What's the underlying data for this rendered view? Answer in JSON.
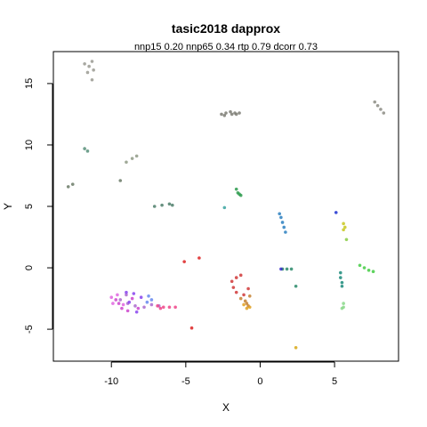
{
  "chart_data": {
    "type": "scatter",
    "title": "tasic2018 dapprox",
    "subtitle": "nnp15 0.20 nnp65 0.34 rtp 0.79 dcorr 0.73",
    "xlabel": "X",
    "ylabel": "Y",
    "xlim": [
      -13.9,
      9.3
    ],
    "ylim": [
      -7.6,
      17.6
    ],
    "xticks": [
      -10,
      -5,
      0,
      5
    ],
    "yticks": [
      -5,
      0,
      5,
      10,
      15
    ],
    "grid": false,
    "legend": "none",
    "clusters": [
      {
        "color": "#9a9a92",
        "points": [
          [
            -11.8,
            16.6
          ],
          [
            -11.5,
            16.4
          ],
          [
            -11.3,
            16.8
          ],
          [
            -11.2,
            16.1
          ],
          [
            -11.6,
            15.9
          ],
          [
            -11.3,
            15.3
          ]
        ]
      },
      {
        "color": "#7d7d74",
        "points": [
          [
            -2.6,
            12.5
          ],
          [
            -2.3,
            12.6
          ],
          [
            -2.0,
            12.7
          ],
          [
            -1.7,
            12.6
          ],
          [
            -1.4,
            12.6
          ],
          [
            -2.4,
            12.4
          ],
          [
            -1.9,
            12.5
          ],
          [
            -1.6,
            12.5
          ]
        ]
      },
      {
        "color": "#8c8c84",
        "points": [
          [
            7.7,
            13.5
          ],
          [
            7.9,
            13.2
          ],
          [
            8.1,
            12.9
          ],
          [
            8.3,
            12.6
          ]
        ]
      },
      {
        "color": "#58907a",
        "points": [
          [
            -11.8,
            9.7
          ],
          [
            -11.6,
            9.5
          ]
        ]
      },
      {
        "color": "#8f9a86",
        "points": [
          [
            -9.0,
            8.6
          ],
          [
            -8.6,
            8.9
          ],
          [
            -8.3,
            9.1
          ]
        ]
      },
      {
        "color": "#6a7a66",
        "points": [
          [
            -9.4,
            7.1
          ],
          [
            -12.9,
            6.6
          ],
          [
            -12.6,
            6.8
          ]
        ]
      },
      {
        "color": "#4c7e6a",
        "points": [
          [
            -7.1,
            5.0
          ],
          [
            -6.6,
            5.1
          ],
          [
            -6.1,
            5.2
          ],
          [
            -5.9,
            5.1
          ]
        ]
      },
      {
        "color": "#2d9b4d",
        "points": [
          [
            -1.6,
            6.4
          ],
          [
            -1.5,
            6.1
          ],
          [
            -1.3,
            5.9
          ],
          [
            -1.4,
            6.0
          ]
        ]
      },
      {
        "color": "#3aa3a0",
        "points": [
          [
            -2.4,
            4.9
          ]
        ]
      },
      {
        "color": "#2a7fbf",
        "points": [
          [
            1.3,
            4.4
          ],
          [
            1.4,
            4.1
          ],
          [
            1.5,
            3.7
          ],
          [
            1.6,
            3.3
          ],
          [
            1.7,
            2.9
          ]
        ]
      },
      {
        "color": "#1a2fd0",
        "points": [
          [
            5.1,
            4.5
          ]
        ]
      },
      {
        "color": "#c8c820",
        "points": [
          [
            5.6,
            3.6
          ],
          [
            5.7,
            3.3
          ],
          [
            5.6,
            3.1
          ]
        ]
      },
      {
        "color": "#88cc44",
        "points": [
          [
            5.8,
            2.3
          ]
        ]
      },
      {
        "color": "#2a8a6a",
        "points": [
          [
            1.5,
            -0.1
          ],
          [
            1.8,
            -0.1
          ],
          [
            2.1,
            -0.1
          ]
        ]
      },
      {
        "color": "#3a2acc",
        "points": [
          [
            1.4,
            -0.1
          ]
        ]
      },
      {
        "color": "#2a8a6a",
        "points": [
          [
            2.4,
            -1.5
          ]
        ]
      },
      {
        "color": "#1a8a7a",
        "points": [
          [
            5.4,
            -0.4
          ],
          [
            5.4,
            -0.8
          ],
          [
            5.5,
            -1.2
          ],
          [
            5.5,
            -1.5
          ]
        ]
      },
      {
        "color": "#44cc44",
        "points": [
          [
            6.7,
            0.2
          ],
          [
            7.0,
            0.0
          ],
          [
            7.3,
            -0.2
          ],
          [
            7.6,
            -0.3
          ]
        ]
      },
      {
        "color": "#8ad88a",
        "points": [
          [
            5.6,
            -2.9
          ],
          [
            5.6,
            -3.2
          ],
          [
            5.5,
            -3.3
          ]
        ]
      },
      {
        "color": "#dd2222",
        "points": [
          [
            -5.1,
            0.5
          ],
          [
            -4.1,
            0.8
          ],
          [
            -4.6,
            -4.9
          ]
        ]
      },
      {
        "color": "#d8a818",
        "points": [
          [
            2.4,
            -6.5
          ]
        ]
      },
      {
        "color": "#d03838",
        "points": [
          [
            -1.9,
            -1.1
          ],
          [
            -1.6,
            -0.8
          ],
          [
            -1.3,
            -0.6
          ],
          [
            -1.8,
            -1.6
          ],
          [
            -1.6,
            -2.0
          ],
          [
            -1.1,
            -2.2
          ],
          [
            -0.8,
            -1.7
          ]
        ]
      },
      {
        "color": "#c48030",
        "points": [
          [
            -1.3,
            -2.5
          ],
          [
            -1.0,
            -2.7
          ],
          [
            -0.9,
            -2.9
          ],
          [
            -0.8,
            -3.1
          ],
          [
            -0.7,
            -2.3
          ]
        ]
      },
      {
        "color": "#e0a020",
        "points": [
          [
            -1.1,
            -3.0
          ],
          [
            -0.9,
            -3.3
          ],
          [
            -0.7,
            -3.2
          ]
        ]
      },
      {
        "color": "#aa6acc",
        "points": [
          [
            -9.4,
            -2.6
          ],
          [
            -8.9,
            -2.9
          ],
          [
            -8.4,
            -3.1
          ],
          [
            -7.8,
            -3.2
          ],
          [
            -7.3,
            -3.0
          ],
          [
            -6.8,
            -3.1
          ],
          [
            -9.0,
            -2.2
          ]
        ]
      },
      {
        "color": "#cc44cc",
        "points": [
          [
            -9.7,
            -2.6
          ],
          [
            -9.3,
            -3.3
          ],
          [
            -8.6,
            -2.5
          ],
          [
            -8.9,
            -3.5
          ],
          [
            -8.2,
            -3.3
          ],
          [
            -9.5,
            -2.9
          ]
        ]
      },
      {
        "color": "#8844ee",
        "points": [
          [
            -9.0,
            -2.0
          ],
          [
            -8.5,
            -2.1
          ],
          [
            -8.8,
            -2.8
          ],
          [
            -8.0,
            -2.4
          ],
          [
            -8.3,
            -3.6
          ]
        ]
      },
      {
        "color": "#6688ee",
        "points": [
          [
            -7.5,
            -2.3
          ],
          [
            -7.3,
            -2.6
          ],
          [
            -7.6,
            -2.8
          ]
        ]
      },
      {
        "color": "#ee4488",
        "points": [
          [
            -6.9,
            -3.1
          ],
          [
            -6.5,
            -3.2
          ],
          [
            -6.1,
            -3.2
          ],
          [
            -5.7,
            -3.2
          ],
          [
            -6.7,
            -3.3
          ]
        ]
      },
      {
        "color": "#e066e0",
        "points": [
          [
            -10.0,
            -2.4
          ],
          [
            -9.6,
            -2.2
          ],
          [
            -9.9,
            -2.9
          ],
          [
            -9.2,
            -3.0
          ]
        ]
      }
    ]
  }
}
